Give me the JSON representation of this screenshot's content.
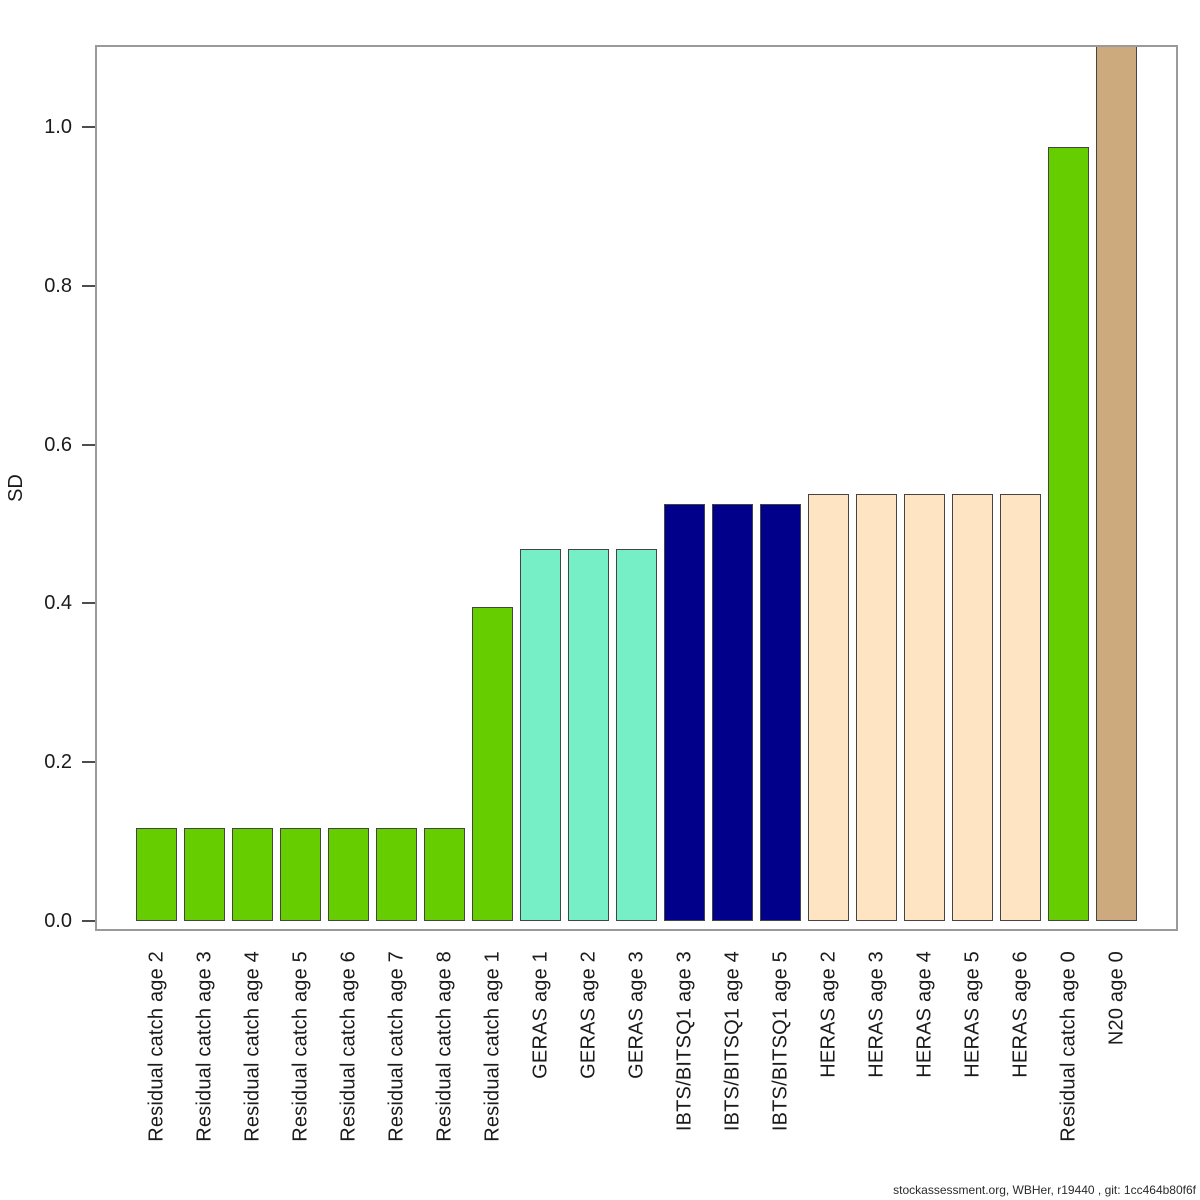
{
  "figure": {
    "ylabel": "SD",
    "footer": "stockassessment.org, WBHer, r19440 , git: 1cc464b80f6f"
  },
  "chart_data": {
    "type": "bar",
    "title": "",
    "xlabel": "",
    "ylabel": "SD",
    "ylim": [
      0,
      1.1
    ],
    "ytick_labels": [
      "0.0",
      "0.2",
      "0.4",
      "0.6",
      "0.8",
      "1.0"
    ],
    "ytick_values": [
      0.0,
      0.2,
      0.4,
      0.6,
      0.8,
      1.0
    ],
    "grid": false,
    "legend": "none",
    "categories": [
      "Residual catch age 2",
      "Residual catch age 3",
      "Residual catch age 4",
      "Residual catch age 5",
      "Residual catch age 6",
      "Residual catch age 7",
      "Residual catch age 8",
      "Residual catch age 1",
      "GERAS age 1",
      "GERAS age 2",
      "GERAS age 3",
      "IBTS/BITSQ1 age 3",
      "IBTS/BITSQ1 age 4",
      "IBTS/BITSQ1 age 5",
      "HERAS age 2",
      "HERAS age 3",
      "HERAS age 4",
      "HERAS age 5",
      "HERAS age 6",
      "Residual catch age 0",
      "N20 age 0"
    ],
    "values": [
      0.117,
      0.117,
      0.117,
      0.117,
      0.117,
      0.117,
      0.117,
      0.396,
      0.468,
      0.468,
      0.468,
      0.525,
      0.525,
      0.525,
      0.538,
      0.538,
      0.538,
      0.538,
      0.538,
      0.975,
      1.102
    ],
    "bar_colors": [
      "#66CD00",
      "#66CD00",
      "#66CD00",
      "#66CD00",
      "#66CD00",
      "#66CD00",
      "#66CD00",
      "#66CD00",
      "#76EEC6",
      "#76EEC6",
      "#76EEC6",
      "#00008B",
      "#00008B",
      "#00008B",
      "#FFE4C4",
      "#FFE4C4",
      "#FFE4C4",
      "#FFE4C4",
      "#FFE4C4",
      "#66CD00",
      "#CDAA7D"
    ],
    "bar_outline_color": "#444444",
    "axis_box_color": "#9a9a9a",
    "clipped_bars": [
      "N20 age 0"
    ],
    "note": "N20 age 0 bar exceeds the y-axis range and is clipped at the top of the plot box",
    "fleet_groups": [
      {
        "name": "Residual catch",
        "color": "#66CD00"
      },
      {
        "name": "GERAS",
        "color": "#76EEC6"
      },
      {
        "name": "IBTS/BITSQ1",
        "color": "#00008B"
      },
      {
        "name": "HERAS",
        "color": "#FFE4C4"
      },
      {
        "name": "N20",
        "color": "#CDAA7D"
      }
    ]
  }
}
